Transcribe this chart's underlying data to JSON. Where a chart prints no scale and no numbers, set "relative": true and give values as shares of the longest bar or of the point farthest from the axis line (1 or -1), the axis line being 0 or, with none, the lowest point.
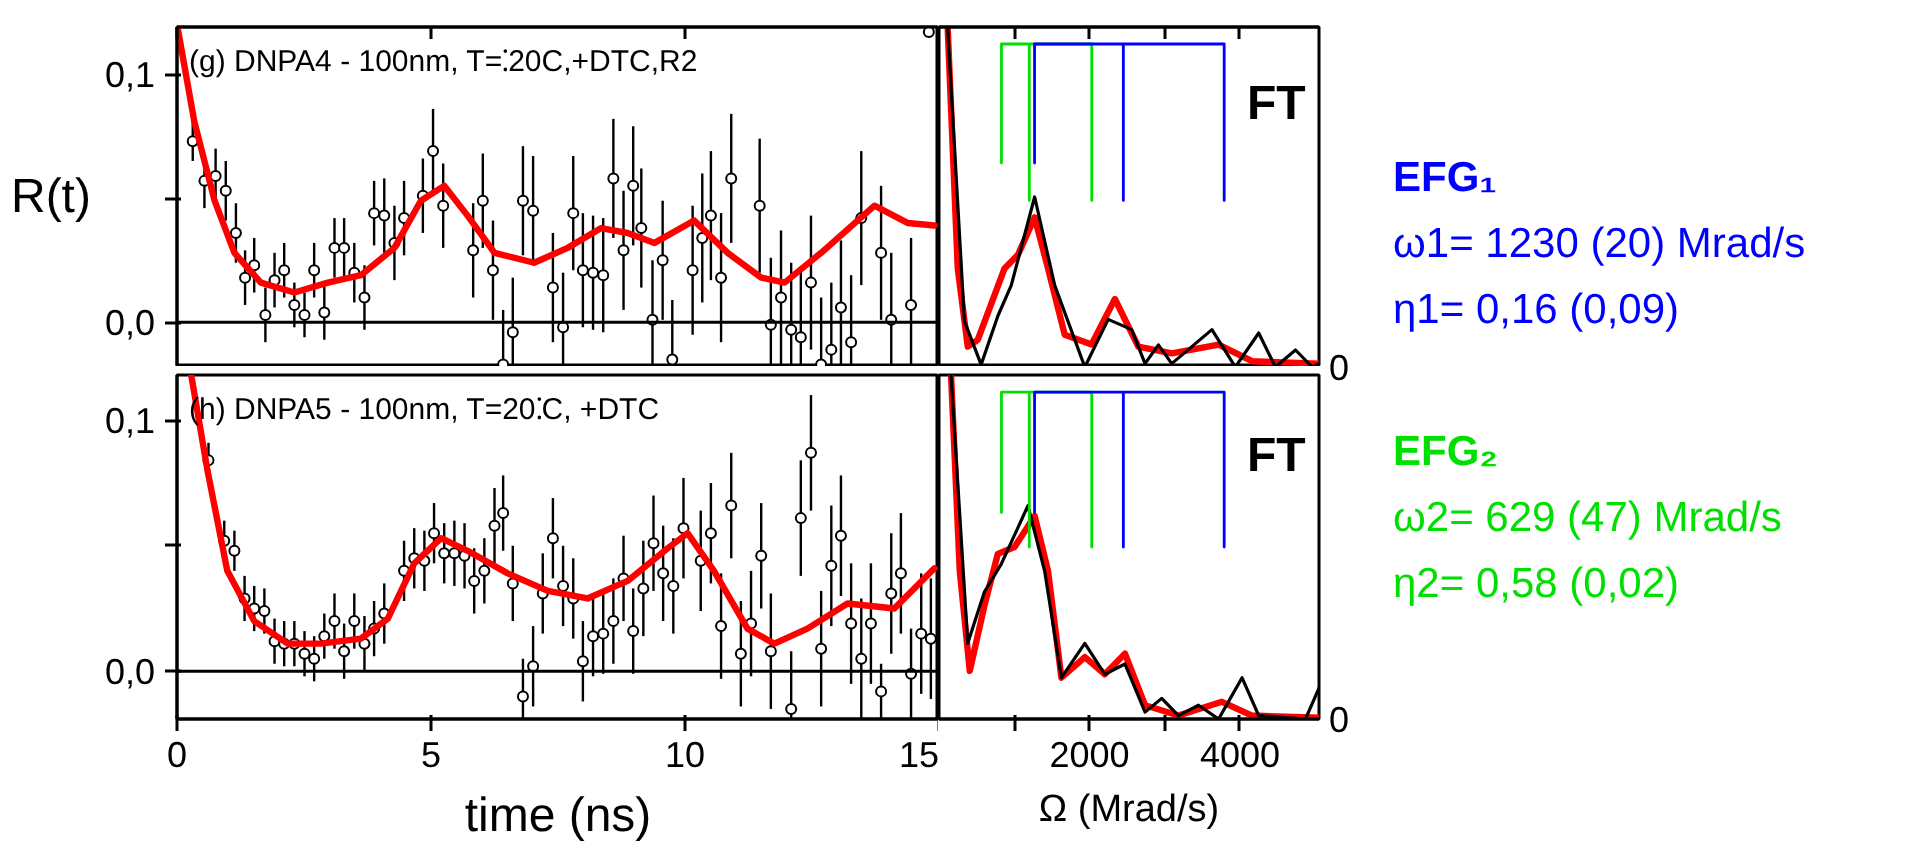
{
  "chart_data": [
    {
      "type": "scatter",
      "title": "(g) DNPA4 - 100nm, T=⁚20C,+DTC,R2",
      "ylabel": "R(t)",
      "xlim": [
        0,
        15
      ],
      "ylim": [
        -0.018,
        0.119
      ],
      "xticks": [
        0,
        5,
        10,
        15
      ],
      "yticks": [
        {
          "value": 0,
          "label": "0,0"
        },
        {
          "value": 0.05,
          "label": null
        },
        {
          "value": 0.1,
          "label": "0,1"
        }
      ],
      "tick_labels": "y",
      "grid": false,
      "ref_lines": [
        {
          "axis": "y",
          "value": 0,
          "color": "#000000"
        }
      ],
      "series": [
        {
          "type": "scatter",
          "color": "#000000",
          "marker": "circle",
          "x": [
            0.31,
            0.54,
            0.76,
            0.96,
            1.16,
            1.34,
            1.52,
            1.74,
            1.92,
            2.11,
            2.31,
            2.51,
            2.7,
            2.9,
            3.1,
            3.29,
            3.49,
            3.69,
            3.88,
            4.08,
            4.28,
            4.47,
            4.84,
            5.04,
            5.24,
            5.83,
            6.02,
            6.22,
            6.42,
            6.61,
            6.81,
            7.01,
            7.4,
            7.6,
            7.8,
            7.99,
            8.19,
            8.39,
            8.59,
            8.79,
            8.98,
            9.14,
            9.36,
            9.56,
            9.75,
            10.15,
            10.34,
            10.51,
            10.71,
            10.91,
            11.47,
            11.69,
            11.89,
            12.09,
            12.28,
            12.48,
            12.68,
            12.88,
            13.07,
            13.27,
            13.47,
            13.86,
            14.06,
            14.45,
            14.8
          ],
          "values": [
            0.073,
            0.057,
            0.059,
            0.053,
            0.036,
            0.018,
            0.023,
            0.003,
            0.017,
            0.021,
            0.007,
            0.003,
            0.021,
            0.004,
            0.03,
            0.03,
            0.02,
            0.01,
            0.044,
            0.043,
            0.032,
            0.042,
            0.051,
            0.069,
            0.047,
            0.029,
            0.049,
            0.021,
            -0.017,
            -0.004,
            0.049,
            0.045,
            0.014,
            -0.002,
            0.044,
            0.021,
            0.02,
            0.019,
            0.058,
            0.029,
            0.055,
            0.038,
            0.001,
            0.025,
            -0.015,
            0.021,
            0.034,
            0.043,
            0.018,
            0.058,
            0.047,
            -0.001,
            0.01,
            -0.003,
            -0.006,
            0.016,
            -0.017,
            -0.011,
            0.006,
            -0.008,
            0.042,
            0.028,
            0.001,
            0.007,
            0.117
          ],
          "errors": [
            0.008,
            0.011,
            0.011,
            0.012,
            0.012,
            0.011,
            0.011,
            0.011,
            0.011,
            0.011,
            0.009,
            0.009,
            0.011,
            0.011,
            0.012,
            0.012,
            0.012,
            0.013,
            0.013,
            0.015,
            0.015,
            0.015,
            0.015,
            0.017,
            0.017,
            0.019,
            0.019,
            0.02,
            0.022,
            0.022,
            0.022,
            0.022,
            0.022,
            0.022,
            0.023,
            0.023,
            0.023,
            0.023,
            0.024,
            0.024,
            0.024,
            0.024,
            0.024,
            0.024,
            0.024,
            0.026,
            0.026,
            0.026,
            0.026,
            0.026,
            0.027,
            0.027,
            0.027,
            0.027,
            0.027,
            0.027,
            0.027,
            0.027,
            0.027,
            0.027,
            0.027,
            0.027,
            0.027,
            0.027,
            0.002
          ]
        },
        {
          "type": "line",
          "color": "#ff0000",
          "x": [
            0.01,
            0.34,
            0.74,
            1.13,
            1.65,
            2.31,
            2.97,
            3.62,
            4.28,
            4.8,
            5.26,
            5.72,
            6.25,
            7.03,
            7.69,
            8.35,
            8.87,
            9.4,
            10.18,
            10.84,
            11.5,
            11.96,
            12.68,
            13.73,
            14.39,
            14.91
          ],
          "values": [
            0.119,
            0.081,
            0.049,
            0.028,
            0.016,
            0.012,
            0.016,
            0.019,
            0.03,
            0.049,
            0.055,
            0.043,
            0.028,
            0.024,
            0.03,
            0.038,
            0.036,
            0.032,
            0.041,
            0.028,
            0.018,
            0.016,
            0.028,
            0.047,
            0.04,
            0.039
          ]
        }
      ]
    },
    {
      "type": "line",
      "relative": true,
      "xlim": [
        0,
        5050
      ],
      "xticks": [
        {
          "value": 1000,
          "label": null
        },
        {
          "value": 2000,
          "label": null
        },
        {
          "value": 3000,
          "label": null
        },
        {
          "value": 4000,
          "label": null
        }
      ],
      "tick_labels": false,
      "grid": false,
      "annotations": [
        "FT",
        "0"
      ],
      "series": [
        {
          "color": "#000000",
          "x": [
            115,
            338,
            560,
            782,
            960,
            1271,
            1538,
            1938,
            2249,
            2560,
            2738,
            2916,
            3093,
            3627,
            3938,
            4249,
            4471,
            4738,
            4960,
            5050
          ],
          "values": [
            1.0,
            0.135,
            0.007,
            0.15,
            0.24,
            0.5,
            0.24,
            0.0,
            0.14,
            0.11,
            0.01,
            0.065,
            0.01,
            0.11,
            0.0,
            0.1,
            0.0,
            0.05,
            0.0,
            0.01
          ]
        },
        {
          "color": "#ff0000",
          "x": [
            115,
            249,
            382,
            515,
            871,
            1049,
            1271,
            1449,
            1671,
            2027,
            2338,
            2649,
            3093,
            3716,
            4160,
            5050
          ],
          "values": [
            1.0,
            0.29,
            0.06,
            0.08,
            0.29,
            0.33,
            0.44,
            0.29,
            0.095,
            0.066,
            0.2,
            0.06,
            0.04,
            0.066,
            0.017,
            0.01
          ]
        },
        {
          "color": "#00e000",
          "x": [
            830,
            830,
            1200,
            1200,
            1200,
            2030,
            2030
          ],
          "values": [
            0.6,
            0.95,
            0.95,
            0.49,
            0.95,
            0.95,
            0.49
          ]
        },
        {
          "color": "#0000ff",
          "x": [
            1270,
            1270,
            2450,
            2450,
            2450,
            3790,
            3790
          ],
          "values": [
            0.6,
            0.95,
            0.95,
            0.49,
            0.95,
            0.95,
            0.49
          ]
        }
      ]
    },
    {
      "type": "scatter",
      "title": "(h) DNPA5 - 100nm, T=20⁚C, +DTC",
      "xlabel": "time (ns)",
      "xlim": [
        0,
        15
      ],
      "ylim": [
        -0.019,
        0.118
      ],
      "xticks": [
        0,
        5,
        10,
        15
      ],
      "yticks": [
        {
          "value": 0,
          "label": "0,0"
        },
        {
          "value": 0.05,
          "label": null
        },
        {
          "value": 0.1,
          "label": "0,1"
        }
      ],
      "grid": false,
      "ref_lines": [
        {
          "axis": "y",
          "value": 0,
          "color": "#000000"
        }
      ],
      "series": [
        {
          "type": "scatter",
          "color": "#000000",
          "marker": "circle",
          "x": [
            0.62,
            0.93,
            1.13,
            1.33,
            1.52,
            1.72,
            1.92,
            2.11,
            2.31,
            2.51,
            2.7,
            2.9,
            3.1,
            3.29,
            3.49,
            3.69,
            3.88,
            4.08,
            4.47,
            4.67,
            4.87,
            5.06,
            5.26,
            5.46,
            5.66,
            5.85,
            6.05,
            6.25,
            6.42,
            6.61,
            6.81,
            7.01,
            7.2,
            7.4,
            7.6,
            7.8,
            7.99,
            8.19,
            8.39,
            8.59,
            8.79,
            8.98,
            9.18,
            9.38,
            9.57,
            9.77,
            9.97,
            10.31,
            10.51,
            10.71,
            10.91,
            11.1,
            11.3,
            11.5,
            11.69,
            12.09,
            12.28,
            12.48,
            12.68,
            12.88,
            13.07,
            13.27,
            13.47,
            13.66,
            13.86,
            14.06,
            14.25,
            14.45,
            14.65,
            14.84
          ],
          "values": [
            0.084,
            0.052,
            0.048,
            0.029,
            0.025,
            0.024,
            0.012,
            0.011,
            0.011,
            0.007,
            0.005,
            0.014,
            0.02,
            0.008,
            0.02,
            0.011,
            0.017,
            0.023,
            0.04,
            0.045,
            0.044,
            0.055,
            0.047,
            0.047,
            0.046,
            0.036,
            0.04,
            0.058,
            0.063,
            0.035,
            -0.01,
            0.002,
            0.031,
            0.053,
            0.034,
            0.029,
            0.004,
            0.014,
            0.015,
            0.02,
            0.037,
            0.016,
            0.033,
            0.051,
            0.039,
            0.034,
            0.057,
            0.044,
            0.055,
            0.018,
            0.066,
            0.007,
            0.019,
            0.046,
            0.008,
            -0.015,
            0.061,
            0.087,
            0.009,
            0.042,
            0.054,
            0.019,
            0.005,
            0.019,
            -0.008,
            0.031,
            0.039,
            -0.001,
            0.015,
            0.013
          ],
          "errors": [
            0.007,
            0.008,
            0.008,
            0.009,
            0.009,
            0.009,
            0.009,
            0.009,
            0.009,
            0.009,
            0.009,
            0.009,
            0.011,
            0.011,
            0.011,
            0.011,
            0.011,
            0.012,
            0.012,
            0.012,
            0.012,
            0.012,
            0.012,
            0.013,
            0.013,
            0.013,
            0.013,
            0.015,
            0.015,
            0.015,
            0.015,
            0.016,
            0.016,
            0.016,
            0.016,
            0.016,
            0.016,
            0.016,
            0.016,
            0.017,
            0.017,
            0.017,
            0.019,
            0.019,
            0.019,
            0.019,
            0.02,
            0.02,
            0.02,
            0.021,
            0.021,
            0.021,
            0.021,
            0.021,
            0.023,
            [
              -0.019,
              0.008
            ],
            0.023,
            0.023,
            0.023,
            0.024,
            0.024,
            0.024,
            0.024,
            0.024,
            0.011,
            0.024,
            0.024,
            0.018,
            0.024,
            0.024
          ]
        },
        {
          "type": "line",
          "color": "#ff0000",
          "x": [
            0.28,
            0.6,
            0.99,
            1.52,
            2.18,
            2.83,
            3.62,
            4.15,
            4.67,
            5.2,
            5.72,
            6.51,
            7.3,
            8.08,
            8.87,
            9.66,
            10.05,
            10.57,
            11.23,
            11.76,
            12.41,
            13.2,
            14.12,
            14.91
          ],
          "values": [
            0.118,
            0.08,
            0.04,
            0.02,
            0.011,
            0.011,
            0.013,
            0.021,
            0.043,
            0.053,
            0.048,
            0.039,
            0.032,
            0.029,
            0.036,
            0.049,
            0.055,
            0.04,
            0.017,
            0.011,
            0.017,
            0.027,
            0.025,
            0.041
          ]
        }
      ]
    },
    {
      "type": "line",
      "relative": true,
      "xlabel": "Ω (Mrad/s)",
      "xlim": [
        0,
        5050
      ],
      "xticks": [
        {
          "value": 1000,
          "label": null
        },
        {
          "value": 2000,
          "label": "2000"
        },
        {
          "value": 3000,
          "label": null
        },
        {
          "value": 4000,
          "label": "4000"
        }
      ],
      "tick_labels": "x",
      "grid": false,
      "annotations": [
        "FT",
        "0"
      ],
      "series": [
        {
          "color": "#000000",
          "x": [
            160,
            382,
            604,
            827,
            1182,
            1404,
            1627,
            1938,
            2204,
            2471,
            2738,
            2960,
            3182,
            3449,
            3716,
            4027,
            4249,
            4871,
            5050
          ],
          "values": [
            1.0,
            0.22,
            0.37,
            0.45,
            0.62,
            0.43,
            0.12,
            0.22,
            0.13,
            0.16,
            0.02,
            0.06,
            0.01,
            0.04,
            0.0,
            0.12,
            0.01,
            0.0,
            0.09
          ]
        },
        {
          "color": "#ff0000",
          "x": [
            160,
            276,
            409,
            604,
            782,
            1004,
            1271,
            1449,
            1627,
            1938,
            2204,
            2471,
            2738,
            3182,
            3760,
            4160,
            5050
          ],
          "values": [
            1.0,
            0.43,
            0.14,
            0.33,
            0.48,
            0.5,
            0.59,
            0.43,
            0.12,
            0.18,
            0.13,
            0.19,
            0.04,
            0.01,
            0.05,
            0.01,
            0.004
          ]
        },
        {
          "color": "#00e000",
          "x": [
            830,
            830,
            1200,
            1200,
            1200,
            2030,
            2030
          ],
          "values": [
            0.6,
            0.95,
            0.95,
            0.5,
            0.95,
            0.95,
            0.5
          ]
        },
        {
          "color": "#0000ff",
          "x": [
            1270,
            1270,
            2450,
            2450,
            2450,
            3790,
            3790
          ],
          "values": [
            0.6,
            0.95,
            0.95,
            0.5,
            0.95,
            0.95,
            0.5
          ]
        }
      ]
    },
    {
      "type": "other",
      "annotations": [
        "EFG₁",
        "ω1= 1230 (20) Mrad/s",
        "η1= 0,16 (0,09)",
        "EFG₂",
        "ω2= 629 (47) Mrad/s",
        "η2= 0,58 (0,02)"
      ],
      "colors": [
        "#0000ff",
        "#0000ff",
        "#0000ff",
        "#00e000",
        "#00e000",
        "#00e000"
      ]
    }
  ]
}
